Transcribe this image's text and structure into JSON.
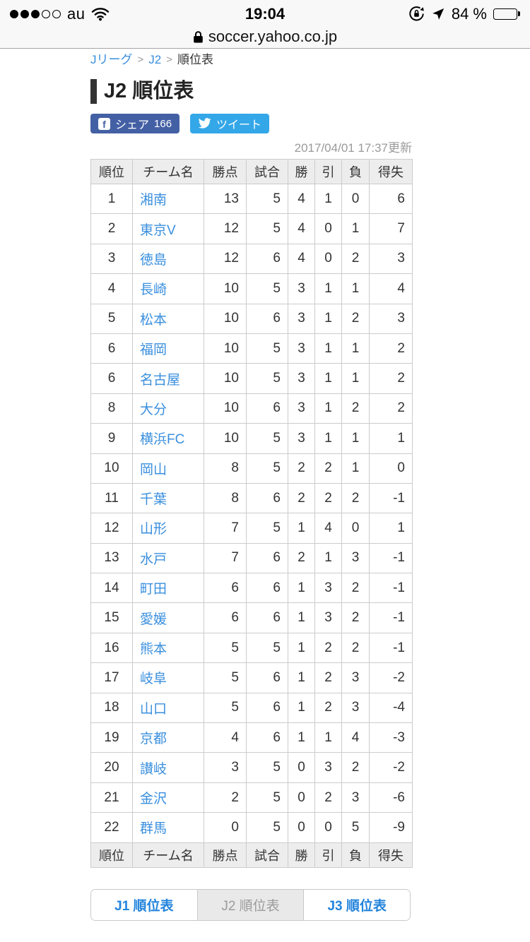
{
  "status_bar": {
    "signal_filled": 3,
    "signal_total": 5,
    "carrier": "au",
    "time": "19:04",
    "battery_percent_label": "84 %",
    "battery_level": 0.84
  },
  "url_bar": {
    "domain": "soccer.yahoo.co.jp"
  },
  "breadcrumb": {
    "separator": ">",
    "items": [
      {
        "label": "Jリーグ",
        "link": true
      },
      {
        "label": "J2",
        "link": true
      },
      {
        "label": "順位表",
        "link": false
      }
    ]
  },
  "page": {
    "title": "J2 順位表",
    "updated": "2017/04/01 17:37更新"
  },
  "share": {
    "facebook": {
      "label": "シェア",
      "count": "166"
    },
    "twitter": {
      "label": "ツイート"
    }
  },
  "standings": {
    "headers": [
      "順位",
      "チーム名",
      "勝点",
      "試合",
      "勝",
      "引",
      "負",
      "得失"
    ],
    "rows": [
      {
        "rank": "1",
        "team": "湘南",
        "points": "13",
        "played": "5",
        "win": "4",
        "draw": "1",
        "loss": "0",
        "gd": "6"
      },
      {
        "rank": "2",
        "team": "東京V",
        "points": "12",
        "played": "5",
        "win": "4",
        "draw": "0",
        "loss": "1",
        "gd": "7"
      },
      {
        "rank": "3",
        "team": "徳島",
        "points": "12",
        "played": "6",
        "win": "4",
        "draw": "0",
        "loss": "2",
        "gd": "3"
      },
      {
        "rank": "4",
        "team": "長崎",
        "points": "10",
        "played": "5",
        "win": "3",
        "draw": "1",
        "loss": "1",
        "gd": "4"
      },
      {
        "rank": "5",
        "team": "松本",
        "points": "10",
        "played": "6",
        "win": "3",
        "draw": "1",
        "loss": "2",
        "gd": "3"
      },
      {
        "rank": "6",
        "team": "福岡",
        "points": "10",
        "played": "5",
        "win": "3",
        "draw": "1",
        "loss": "1",
        "gd": "2"
      },
      {
        "rank": "6",
        "team": "名古屋",
        "points": "10",
        "played": "5",
        "win": "3",
        "draw": "1",
        "loss": "1",
        "gd": "2"
      },
      {
        "rank": "8",
        "team": "大分",
        "points": "10",
        "played": "6",
        "win": "3",
        "draw": "1",
        "loss": "2",
        "gd": "2"
      },
      {
        "rank": "9",
        "team": "横浜FC",
        "points": "10",
        "played": "5",
        "win": "3",
        "draw": "1",
        "loss": "1",
        "gd": "1"
      },
      {
        "rank": "10",
        "team": "岡山",
        "points": "8",
        "played": "5",
        "win": "2",
        "draw": "2",
        "loss": "1",
        "gd": "0"
      },
      {
        "rank": "11",
        "team": "千葉",
        "points": "8",
        "played": "6",
        "win": "2",
        "draw": "2",
        "loss": "2",
        "gd": "-1"
      },
      {
        "rank": "12",
        "team": "山形",
        "points": "7",
        "played": "5",
        "win": "1",
        "draw": "4",
        "loss": "0",
        "gd": "1"
      },
      {
        "rank": "13",
        "team": "水戸",
        "points": "7",
        "played": "6",
        "win": "2",
        "draw": "1",
        "loss": "3",
        "gd": "-1"
      },
      {
        "rank": "14",
        "team": "町田",
        "points": "6",
        "played": "6",
        "win": "1",
        "draw": "3",
        "loss": "2",
        "gd": "-1"
      },
      {
        "rank": "15",
        "team": "愛媛",
        "points": "6",
        "played": "6",
        "win": "1",
        "draw": "3",
        "loss": "2",
        "gd": "-1"
      },
      {
        "rank": "16",
        "team": "熊本",
        "points": "5",
        "played": "5",
        "win": "1",
        "draw": "2",
        "loss": "2",
        "gd": "-1"
      },
      {
        "rank": "17",
        "team": "岐阜",
        "points": "5",
        "played": "6",
        "win": "1",
        "draw": "2",
        "loss": "3",
        "gd": "-2"
      },
      {
        "rank": "18",
        "team": "山口",
        "points": "5",
        "played": "6",
        "win": "1",
        "draw": "2",
        "loss": "3",
        "gd": "-4"
      },
      {
        "rank": "19",
        "team": "京都",
        "points": "4",
        "played": "6",
        "win": "1",
        "draw": "1",
        "loss": "4",
        "gd": "-3"
      },
      {
        "rank": "20",
        "team": "讃岐",
        "points": "3",
        "played": "5",
        "win": "0",
        "draw": "3",
        "loss": "2",
        "gd": "-2"
      },
      {
        "rank": "21",
        "team": "金沢",
        "points": "2",
        "played": "5",
        "win": "0",
        "draw": "2",
        "loss": "3",
        "gd": "-6"
      },
      {
        "rank": "22",
        "team": "群馬",
        "points": "0",
        "played": "5",
        "win": "0",
        "draw": "0",
        "loss": "5",
        "gd": "-9"
      }
    ]
  },
  "footer_nav": {
    "items": [
      {
        "label": "J1 順位表",
        "current": false
      },
      {
        "label": "J2 順位表",
        "current": true
      },
      {
        "label": "J3 順位表",
        "current": false
      }
    ]
  },
  "colors": {
    "link_blue": "#3a8fde",
    "nav_blue": "#2484dc",
    "facebook_blue": "#4460a5",
    "twitter_blue": "#34a7e8"
  }
}
